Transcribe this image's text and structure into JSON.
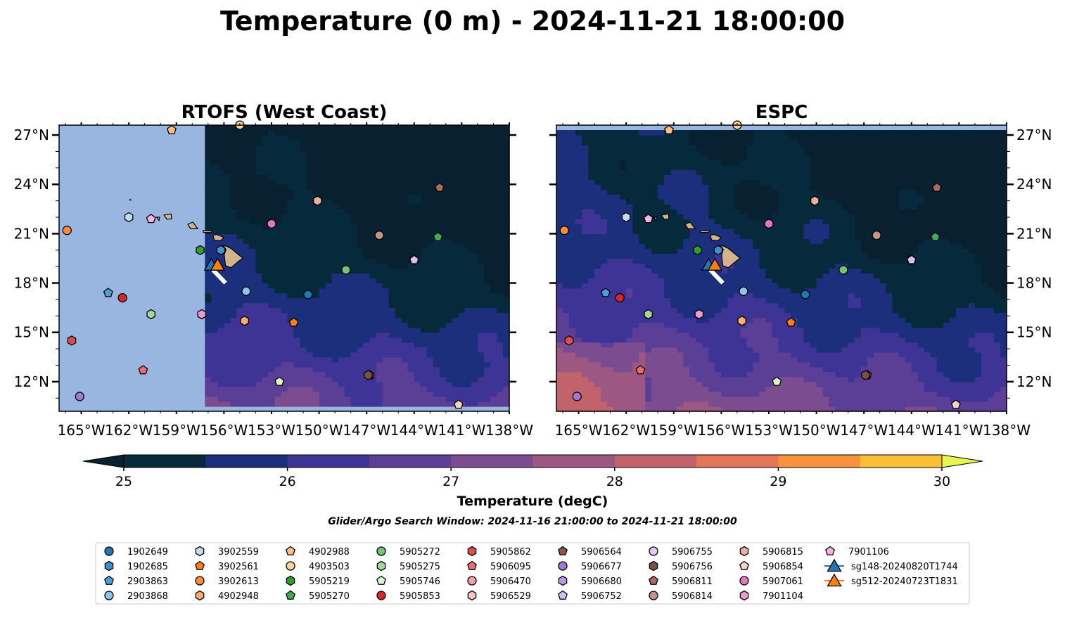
{
  "title": "Temperature (0 m) - 2024-11-21 18:00:00",
  "chart_data": {
    "type": "heatmap",
    "panels": [
      {
        "title": "RTOFS (West Coast)",
        "lon_range": [
          -166.4,
          -138.0
        ],
        "lat_range": [
          10.2,
          27.6
        ],
        "data_lon_start": -157.5
      },
      {
        "title": "ESPC",
        "lon_range": [
          -166.4,
          -138.0
        ],
        "lat_range": [
          10.2,
          27.6
        ],
        "data_lat_end": 27.1
      }
    ],
    "x_ticks": [
      "165°W",
      "162°W",
      "159°W",
      "156°W",
      "153°W",
      "150°W",
      "147°W",
      "144°W",
      "141°W",
      "138°W"
    ],
    "x_tick_values": [
      -165,
      -162,
      -159,
      -156,
      -153,
      -150,
      -147,
      -144,
      -141,
      -138
    ],
    "y_ticks": [
      "27°N",
      "24°N",
      "21°N",
      "18°N",
      "15°N",
      "12°N"
    ],
    "y_tick_values": [
      27,
      24,
      21,
      18,
      15,
      12
    ],
    "colorbar": {
      "label": "Temperature (degC)",
      "min": 25,
      "max": 30,
      "step": 0.5,
      "ticks": [
        "25",
        "26",
        "27",
        "28",
        "29",
        "30"
      ],
      "colors": [
        "#062a3c",
        "#1c2f7c",
        "#3d3496",
        "#5b3f97",
        "#7b4d90",
        "#9c5882",
        "#c2636c",
        "#e27656",
        "#f8923c",
        "#fbbf37",
        "#e7f452"
      ],
      "under_color": "#082030",
      "extend": "both"
    },
    "land_color": "#d2b48c",
    "subtitle": "Glider/Argo Search Window: 2024-11-16 21:00:00 to 2024-11-21 18:00:00",
    "observations": [
      {
        "id": "1902649",
        "lon": -150.7,
        "lat": 17.3,
        "marker": "circle",
        "color": "#1f77b4"
      },
      {
        "id": "1902685",
        "lon": -156.2,
        "lat": 20.0,
        "marker": "hexagon",
        "color": "#3b8fd4"
      },
      {
        "id": "2903863",
        "lon": -163.3,
        "lat": 17.4,
        "marker": "pentagon",
        "color": "#4aa0dc"
      },
      {
        "id": "2903868",
        "lon": -154.6,
        "lat": 17.5,
        "marker": "circle",
        "color": "#8cc4ea"
      },
      {
        "id": "3902559",
        "lon": -162.0,
        "lat": 22.0,
        "marker": "hexagon",
        "color": "#c6dbef"
      },
      {
        "id": "3902561",
        "lon": -151.6,
        "lat": 15.6,
        "marker": "pentagon",
        "color": "#ff7f0e"
      },
      {
        "id": "3902613",
        "lon": -165.9,
        "lat": 21.2,
        "marker": "circle",
        "color": "#fd8d3c"
      },
      {
        "id": "4902948",
        "lon": -154.7,
        "lat": 15.7,
        "marker": "hexagon",
        "color": "#fdae6b"
      },
      {
        "id": "4902988",
        "lon": -159.3,
        "lat": 27.3,
        "marker": "pentagon",
        "color": "#fdbe85"
      },
      {
        "id": "4903503",
        "lon": -155.0,
        "lat": 27.6,
        "marker": "circle",
        "color": "#fdd0a2"
      },
      {
        "id": "5905219",
        "lon": -157.5,
        "lat": 20.0,
        "marker": "hexagon",
        "color": "#2ca02c"
      },
      {
        "id": "5905270",
        "lon": -142.5,
        "lat": 20.8,
        "marker": "pentagon",
        "color": "#41ab5d"
      },
      {
        "id": "5905272",
        "lon": -148.3,
        "lat": 18.8,
        "marker": "circle",
        "color": "#74c476"
      },
      {
        "id": "5905275",
        "lon": -160.6,
        "lat": 16.1,
        "marker": "hexagon",
        "color": "#a1d99b"
      },
      {
        "id": "5905746",
        "lon": -152.5,
        "lat": 12.0,
        "marker": "pentagon",
        "color": "#d9f7c9"
      },
      {
        "id": "5905853",
        "lon": -162.4,
        "lat": 17.1,
        "marker": "circle",
        "color": "#d62728"
      },
      {
        "id": "5905862",
        "lon": -165.6,
        "lat": 14.5,
        "marker": "hexagon",
        "color": "#e04b4b"
      },
      {
        "id": "5906095",
        "lon": -161.1,
        "lat": 12.7,
        "marker": "pentagon",
        "color": "#ef6b6b"
      },
      {
        "id": "5906470",
        "lon": -146.2,
        "lat": 20.9,
        "marker": "circle",
        "color": "#f4a3a3"
      },
      {
        "id": "5906529",
        "lon": -157.4,
        "lat": 16.1,
        "marker": "hexagon",
        "color": "#f9c6c6"
      },
      {
        "id": "5906564",
        "lon": -146.8,
        "lat": 12.4,
        "marker": "pentagon",
        "color": "#8c564b"
      },
      {
        "id": "5906677",
        "lon": -165.1,
        "lat": 11.1,
        "marker": "circle",
        "color": "#9e7bd0"
      },
      {
        "id": "5906680",
        "lon": -144.0,
        "lat": 19.4,
        "marker": "hexagon",
        "color": "#b79be0"
      },
      {
        "id": "5906752",
        "lon": -144.0,
        "lat": 19.4,
        "marker": "pentagon",
        "color": "#d4c2f0"
      },
      {
        "id": "5906755",
        "lon": -153.0,
        "lat": 21.6,
        "marker": "circle",
        "color": "#e8c5f5"
      },
      {
        "id": "5906756",
        "lon": -146.9,
        "lat": 12.4,
        "marker": "hexagon",
        "color": "#7f4f45"
      },
      {
        "id": "5906811",
        "lon": -142.4,
        "lat": 23.8,
        "marker": "pentagon",
        "color": "#a66a5e"
      },
      {
        "id": "5906814",
        "lon": -146.2,
        "lat": 20.9,
        "marker": "circle",
        "color": "#c49484"
      },
      {
        "id": "5906815",
        "lon": -150.1,
        "lat": 23.0,
        "marker": "hexagon",
        "color": "#e8b39a"
      },
      {
        "id": "5906854",
        "lon": -141.2,
        "lat": 10.6,
        "marker": "pentagon",
        "color": "#f7d0c0"
      },
      {
        "id": "5907061",
        "lon": -153.0,
        "lat": 21.6,
        "marker": "circle",
        "color": "#e377c2"
      },
      {
        "id": "7901104",
        "lon": -157.4,
        "lat": 16.1,
        "marker": "hexagon",
        "color": "#ec9ad4"
      },
      {
        "id": "7901106",
        "lon": -160.6,
        "lat": 21.9,
        "marker": "pentagon",
        "color": "#f4b3e0"
      }
    ],
    "gliders": [
      {
        "id": "sg148-20240820T1744",
        "lon": -156.8,
        "lat": 19.1,
        "marker": "triangle",
        "color": "#1f77b4"
      },
      {
        "id": "sg512-20240723T1831",
        "lon": -156.4,
        "lat": 19.1,
        "marker": "triangle",
        "color": "#ff7f0e"
      }
    ]
  }
}
